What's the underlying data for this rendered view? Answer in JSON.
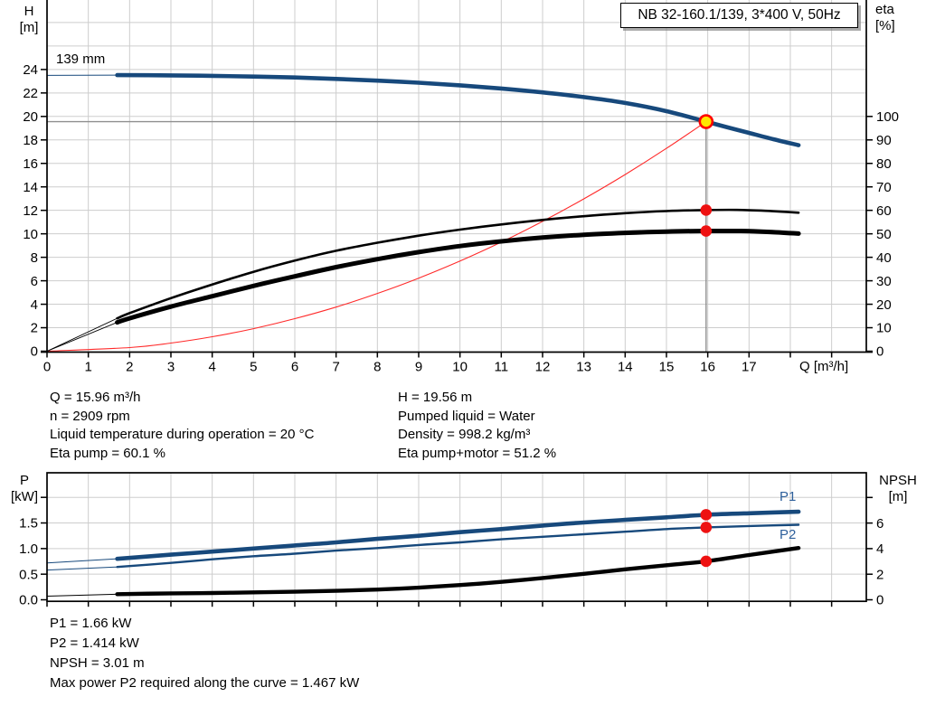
{
  "header": {
    "title": "NB 32-160.1/139, 3*400 V, 50Hz"
  },
  "colors": {
    "curve_blue": "#17497c",
    "curve_black": "#000000",
    "system_red": "#ff2a2a",
    "marker_red": "#ee1111",
    "marker_yellow": "#ffe600",
    "grid": "#cdcdcd",
    "crosshair": "#8f8f8f",
    "label_blue": "#2d5f9b"
  },
  "top_chart": {
    "y_left_title": "H",
    "y_left_unit": "[m]",
    "y_right_title": "eta",
    "y_right_unit": "[%]",
    "x_title": "Q [m³/h]",
    "impeller_label": "139 mm"
  },
  "bottom_chart": {
    "y_left_title": "P",
    "y_left_unit": "[kW]",
    "y_right_title": "NPSH",
    "y_right_unit": "[m]",
    "p1_label": "P1",
    "p2_label": "P2"
  },
  "mid_info": {
    "left": [
      "Q = 15.96 m³/h",
      "n = 2909 rpm",
      "Liquid temperature during operation = 20 °C",
      "Eta pump = 60.1 %"
    ],
    "right": [
      "H = 19.56 m",
      "Pumped liquid = Water",
      "Density = 998.2 kg/m³",
      "Eta pump+motor = 51.2 %"
    ]
  },
  "bottom_info": [
    "P1 = 1.66 kW",
    "P2 = 1.414 kW",
    "NPSH = 3.01 m",
    "Max power P2 required along the curve = 1.467 kW"
  ],
  "chart_data": [
    {
      "id": "qh",
      "type": "line",
      "title": "NB 32-160.1/139, 3*400 V, 50Hz",
      "impeller_diameter_label": "139 mm",
      "x_axis": {
        "label": "Q [m³/h]",
        "min": 0,
        "max": 19.84,
        "tick_labels": [
          "0",
          "1",
          "2",
          "3",
          "4",
          "5",
          "6",
          "7",
          "8",
          "9",
          "10",
          "11",
          "12",
          "13",
          "14",
          "15",
          "16",
          "17"
        ]
      },
      "y_left": {
        "label": "H [m]",
        "min": 0,
        "max": 29.92,
        "grid_step": 2,
        "tick_labels": [
          "0",
          "2",
          "4",
          "6",
          "8",
          "10",
          "12",
          "14",
          "16",
          "18",
          "20",
          "22",
          "24"
        ]
      },
      "y_right": {
        "label": "eta [%]",
        "min": 0,
        "max": 149.6,
        "tick_labels": [
          "0",
          "10",
          "20",
          "30",
          "40",
          "50",
          "60",
          "70",
          "80",
          "90",
          "100"
        ]
      },
      "series": [
        {
          "name": "head-curve-139mm",
          "axis": "left",
          "color": "curve_blue",
          "segments": [
            {
              "width": 1,
              "points": [
                [
                  0,
                  23.5
                ],
                [
                  1.7,
                  23.52
                ]
              ]
            },
            {
              "width": 4.6,
              "points": [
                [
                  1.7,
                  23.52
                ],
                [
                  3,
                  23.5
                ],
                [
                  4,
                  23.46
                ],
                [
                  5,
                  23.4
                ],
                [
                  6,
                  23.32
                ],
                [
                  7,
                  23.2
                ],
                [
                  8,
                  23.05
                ],
                [
                  9,
                  22.87
                ],
                [
                  10,
                  22.65
                ],
                [
                  11,
                  22.38
                ],
                [
                  12,
                  22.05
                ],
                [
                  13,
                  21.65
                ],
                [
                  14,
                  21.15
                ],
                [
                  15,
                  20.45
                ],
                [
                  15.96,
                  19.56
                ],
                [
                  16.5,
                  19.05
                ],
                [
                  17,
                  18.6
                ],
                [
                  17.6,
                  18.05
                ],
                [
                  18.2,
                  17.55
                ]
              ]
            }
          ]
        },
        {
          "name": "system-curve",
          "axis": "left",
          "color": "system_red",
          "segments": [
            {
              "width": 1.1,
              "points": [
                [
                  0,
                  0
                ],
                [
                  2,
                  0.31
                ],
                [
                  3,
                  0.69
                ],
                [
                  4,
                  1.23
                ],
                [
                  5,
                  1.92
                ],
                [
                  6,
                  2.77
                ],
                [
                  7,
                  3.76
                ],
                [
                  8,
                  4.92
                ],
                [
                  9,
                  6.22
                ],
                [
                  10,
                  7.68
                ],
                [
                  11,
                  9.29
                ],
                [
                  12,
                  11.06
                ],
                [
                  13,
                  12.98
                ],
                [
                  14,
                  15.05
                ],
                [
                  15,
                  17.28
                ],
                [
                  15.96,
                  19.56
                ]
              ]
            }
          ]
        },
        {
          "name": "eta-pump",
          "axis": "right",
          "color": "curve_black",
          "segments": [
            {
              "width": 0.9,
              "points": [
                [
                  0,
                  0
                ],
                [
                  1.7,
                  14
                ]
              ]
            },
            {
              "width": 2.6,
              "points": [
                [
                  1.7,
                  14
                ],
                [
                  2,
                  16.2
                ],
                [
                  3,
                  22.6
                ],
                [
                  4,
                  28.4
                ],
                [
                  5,
                  33.8
                ],
                [
                  6,
                  38.6
                ],
                [
                  7,
                  42.8
                ],
                [
                  8,
                  46.2
                ],
                [
                  9,
                  49.2
                ],
                [
                  10,
                  51.8
                ],
                [
                  11,
                  54
                ],
                [
                  12,
                  55.9
                ],
                [
                  13,
                  57.5
                ],
                [
                  14,
                  58.8
                ],
                [
                  15,
                  59.7
                ],
                [
                  15.96,
                  60.1
                ],
                [
                  16.7,
                  60.2
                ],
                [
                  17.4,
                  59.8
                ],
                [
                  18.2,
                  59
                ]
              ]
            }
          ]
        },
        {
          "name": "eta-pump-motor",
          "axis": "right",
          "color": "curve_black",
          "segments": [
            {
              "width": 0.9,
              "points": [
                [
                  0,
                  0
                ],
                [
                  1.7,
                  12.3
                ]
              ]
            },
            {
              "width": 5,
              "points": [
                [
                  1.7,
                  12.3
                ],
                [
                  2,
                  14
                ],
                [
                  3,
                  19
                ],
                [
                  4,
                  23.4
                ],
                [
                  5,
                  27.8
                ],
                [
                  6,
                  31.9
                ],
                [
                  7,
                  35.8
                ],
                [
                  8,
                  39.2
                ],
                [
                  9,
                  42.2
                ],
                [
                  10,
                  44.8
                ],
                [
                  11,
                  46.8
                ],
                [
                  12,
                  48.4
                ],
                [
                  13,
                  49.6
                ],
                [
                  14,
                  50.4
                ],
                [
                  15,
                  50.95
                ],
                [
                  15.96,
                  51.2
                ],
                [
                  16.8,
                  51.2
                ],
                [
                  17.5,
                  50.8
                ],
                [
                  18.2,
                  50.1
                ]
              ]
            }
          ]
        }
      ],
      "duty_point": {
        "q": 15.96,
        "h": 19.56
      },
      "duty_markers": [
        {
          "series": "eta-pump",
          "q": 15.96,
          "value": 60.1,
          "axis": "right"
        },
        {
          "series": "eta-pump-motor",
          "q": 15.96,
          "value": 51.2,
          "axis": "right"
        }
      ]
    },
    {
      "id": "pn",
      "type": "line",
      "title": "Power and NPSH",
      "x_axis": {
        "label": "",
        "min": 0,
        "max": 19.84,
        "tick_labels": null
      },
      "y_left": {
        "label": "P [kW]",
        "min": 0,
        "max": 2.48,
        "grid_step": 0.5,
        "tick_labels": [
          "0.0",
          "0.5",
          "1.0",
          "1.5"
        ]
      },
      "y_right": {
        "label": "NPSH [m]",
        "min": 0,
        "max": 9.93,
        "tick_labels": [
          "0",
          "2",
          "4",
          "6"
        ]
      },
      "series": [
        {
          "name": "p1-power",
          "axis": "left",
          "color": "curve_blue",
          "segments": [
            {
              "width": 1,
              "points": [
                [
                  0,
                  0.72
                ],
                [
                  1.7,
                  0.8
                ]
              ]
            },
            {
              "width": 4.6,
              "points": [
                [
                  1.7,
                  0.8
                ],
                [
                  3,
                  0.88
                ],
                [
                  4,
                  0.94
                ],
                [
                  5,
                  1.0
                ],
                [
                  6,
                  1.06
                ],
                [
                  7,
                  1.12
                ],
                [
                  8,
                  1.19
                ],
                [
                  9,
                  1.25
                ],
                [
                  10,
                  1.32
                ],
                [
                  11,
                  1.38
                ],
                [
                  12,
                  1.45
                ],
                [
                  13,
                  1.51
                ],
                [
                  14,
                  1.56
                ],
                [
                  15,
                  1.61
                ],
                [
                  15.96,
                  1.66
                ],
                [
                  17,
                  1.69
                ],
                [
                  18.2,
                  1.72
                ]
              ]
            }
          ]
        },
        {
          "name": "p2-power",
          "axis": "left",
          "color": "curve_blue",
          "segments": [
            {
              "width": 1,
              "points": [
                [
                  0,
                  0.58
                ],
                [
                  1.7,
                  0.64
                ]
              ]
            },
            {
              "width": 2.4,
              "points": [
                [
                  1.7,
                  0.64
                ],
                [
                  3,
                  0.72
                ],
                [
                  4,
                  0.79
                ],
                [
                  5,
                  0.85
                ],
                [
                  6,
                  0.9
                ],
                [
                  7,
                  0.96
                ],
                [
                  8,
                  1.01
                ],
                [
                  9,
                  1.07
                ],
                [
                  10,
                  1.12
                ],
                [
                  11,
                  1.18
                ],
                [
                  12,
                  1.23
                ],
                [
                  13,
                  1.28
                ],
                [
                  14,
                  1.33
                ],
                [
                  15,
                  1.38
                ],
                [
                  15.96,
                  1.414
                ],
                [
                  17,
                  1.44
                ],
                [
                  18.2,
                  1.465
                ]
              ]
            }
          ]
        },
        {
          "name": "npsh-curve",
          "axis": "right",
          "color": "curve_black",
          "segments": [
            {
              "width": 1,
              "points": [
                [
                  0,
                  0.28
                ],
                [
                  1.7,
                  0.44
                ]
              ]
            },
            {
              "width": 4.4,
              "points": [
                [
                  1.7,
                  0.44
                ],
                [
                  3,
                  0.5
                ],
                [
                  4,
                  0.53
                ],
                [
                  5,
                  0.58
                ],
                [
                  6,
                  0.63
                ],
                [
                  7,
                  0.7
                ],
                [
                  8,
                  0.8
                ],
                [
                  9,
                  0.95
                ],
                [
                  10,
                  1.15
                ],
                [
                  11,
                  1.4
                ],
                [
                  12,
                  1.7
                ],
                [
                  13,
                  2.03
                ],
                [
                  14,
                  2.38
                ],
                [
                  15,
                  2.7
                ],
                [
                  15.96,
                  3.01
                ],
                [
                  17,
                  3.5
                ],
                [
                  18.2,
                  4.05
                ]
              ]
            }
          ]
        }
      ],
      "duty_markers": [
        {
          "series": "p1-power",
          "q": 15.96,
          "value": 1.66,
          "axis": "left"
        },
        {
          "series": "p2-power",
          "q": 15.96,
          "value": 1.414,
          "axis": "left"
        },
        {
          "series": "npsh-curve",
          "q": 15.96,
          "value": 3.01,
          "axis": "right"
        }
      ]
    }
  ]
}
